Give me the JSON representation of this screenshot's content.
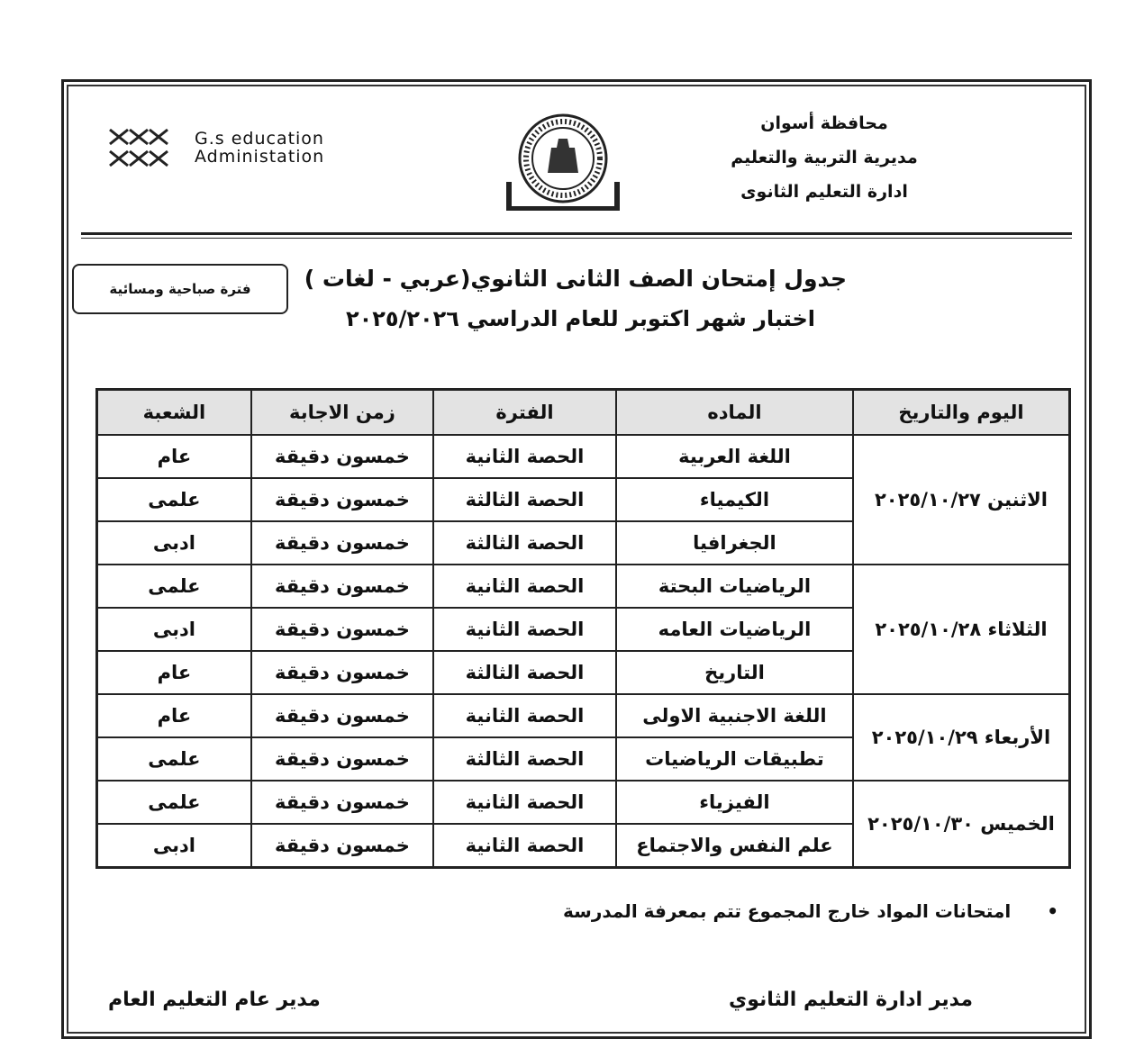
{
  "header": {
    "governorate": "محافظة أسوان",
    "directorate": "مديرية التربية والتعليم",
    "administration": "ادارة التعليم الثانوى",
    "brand_line1": "G.s education",
    "brand_line2": "Administation"
  },
  "title": "جدول إمتحان الصف الثانى الثانوي(عربي - لغات )",
  "period_box": "فترة صباحية ومسائية",
  "subtitle": "اختبار شهر اكتوبر للعام الدراسي ٢٠٢٥/٢٠٢٦",
  "table": {
    "header": [
      "اليوم والتاريخ",
      "الماده",
      "الفترة",
      "زمن الاجابة",
      "الشعبة"
    ],
    "groups": [
      {
        "day": "الاثنين ٢٠٢٥/١٠/٢٧",
        "rows": [
          [
            "اللغة العربية",
            "الحصة الثانية",
            "خمسون دقيقة",
            "عام"
          ],
          [
            "الكيمياء",
            "الحصة الثالثة",
            "خمسون دقيقة",
            "علمى"
          ],
          [
            "الجغرافيا",
            "الحصة الثالثة",
            "خمسون دقيقة",
            "ادبى"
          ]
        ]
      },
      {
        "day": "الثلاثاء ٢٠٢٥/١٠/٢٨",
        "rows": [
          [
            "الرياضيات البحتة",
            "الحصة الثانية",
            "خمسون دقيقة",
            "علمى"
          ],
          [
            "الرياضيات العامه",
            "الحصة الثانية",
            "خمسون دقيقة",
            "ادبى"
          ],
          [
            "التاريخ",
            "الحصة الثالثة",
            "خمسون دقيقة",
            "عام"
          ]
        ]
      },
      {
        "day": "الأربعاء ٢٠٢٥/١٠/٢٩",
        "rows": [
          [
            "اللغة الاجنبية الاولى",
            "الحصة الثانية",
            "خمسون دقيقة",
            "عام"
          ],
          [
            "تطبيقات الرياضيات",
            "الحصة الثالثة",
            "خمسون دقيقة",
            "علمى"
          ]
        ]
      },
      {
        "day": "الخميس ٢٠٢٥/١٠/٣٠",
        "rows": [
          [
            "الفيزياء",
            "الحصة الثانية",
            "خمسون دقيقة",
            "علمى"
          ],
          [
            "علم النفس والاجتماع",
            "الحصة الثانية",
            "خمسون دقيقة",
            "ادبى"
          ]
        ]
      }
    ]
  },
  "note": "امتحانات المواد خارج المجموع تتم بمعرفة المدرسة",
  "signatures": [
    "مدير ادارة التعليم الثانوي",
    "مدير عام التعليم العام"
  ]
}
